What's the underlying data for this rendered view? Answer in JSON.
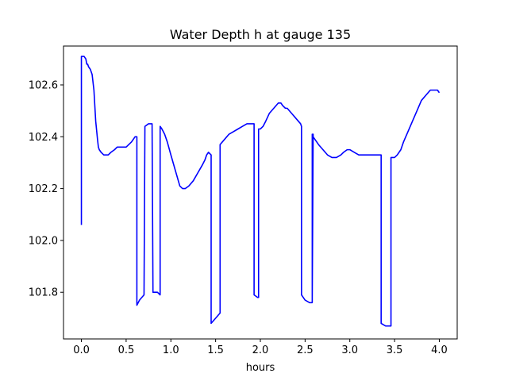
{
  "chart_data": {
    "type": "line",
    "title": "Water Depth h at gauge 135",
    "xlabel": "hours",
    "ylabel": "",
    "xlim": [
      -0.2,
      4.2
    ],
    "ylim": [
      101.62,
      102.75
    ],
    "xticks": [
      0.0,
      0.5,
      1.0,
      1.5,
      2.0,
      2.5,
      3.0,
      3.5,
      4.0
    ],
    "xtick_labels": [
      "0.0",
      "0.5",
      "1.0",
      "1.5",
      "2.0",
      "2.5",
      "3.0",
      "3.5",
      "4.0"
    ],
    "yticks": [
      101.8,
      102.0,
      102.2,
      102.4,
      102.6
    ],
    "ytick_labels": [
      "101.8",
      "102.0",
      "102.2",
      "102.4",
      "102.6"
    ],
    "grid": false,
    "series": [
      {
        "color": "#0000ff",
        "x": [
          0.0,
          0.0,
          0.01,
          0.03,
          0.05,
          0.06,
          0.07,
          0.08,
          0.1,
          0.12,
          0.14,
          0.16,
          0.18,
          0.19,
          0.2,
          0.22,
          0.25,
          0.3,
          0.33,
          0.37,
          0.4,
          0.43,
          0.45,
          0.47,
          0.5,
          0.53,
          0.56,
          0.6,
          0.62,
          0.62,
          0.65,
          0.7,
          0.71,
          0.75,
          0.79,
          0.8,
          0.85,
          0.88,
          0.88,
          0.9,
          0.93,
          0.96,
          1.0,
          1.05,
          1.1,
          1.13,
          1.16,
          1.2,
          1.25,
          1.3,
          1.35,
          1.38,
          1.4,
          1.42,
          1.45,
          1.45,
          1.5,
          1.55,
          1.55,
          1.6,
          1.65,
          1.7,
          1.75,
          1.8,
          1.85,
          1.9,
          1.93,
          1.93,
          1.97,
          1.98,
          1.98,
          2.0,
          2.03,
          2.06,
          2.1,
          2.15,
          2.2,
          2.23,
          2.25,
          2.28,
          2.3,
          2.35,
          2.4,
          2.45,
          2.46,
          2.46,
          2.5,
          2.55,
          2.58,
          2.58,
          2.58,
          2.59,
          2.59,
          2.61,
          2.65,
          2.7,
          2.75,
          2.8,
          2.85,
          2.9,
          2.93,
          2.97,
          3.0,
          3.05,
          3.1,
          3.15,
          3.2,
          3.25,
          3.3,
          3.35,
          3.35,
          3.4,
          3.46,
          3.46,
          3.5,
          3.53,
          3.57,
          3.6,
          3.65,
          3.7,
          3.75,
          3.8,
          3.85,
          3.9,
          3.93,
          3.95,
          3.98,
          4.0
        ],
        "y": [
          102.06,
          102.71,
          102.71,
          102.71,
          102.7,
          102.68,
          102.68,
          102.67,
          102.66,
          102.64,
          102.58,
          102.46,
          102.39,
          102.36,
          102.35,
          102.34,
          102.33,
          102.33,
          102.34,
          102.35,
          102.36,
          102.36,
          102.36,
          102.36,
          102.36,
          102.37,
          102.38,
          102.4,
          102.4,
          101.75,
          101.77,
          101.79,
          102.44,
          102.45,
          102.45,
          101.8,
          101.8,
          101.79,
          102.44,
          102.43,
          102.41,
          102.38,
          102.33,
          102.27,
          102.21,
          102.2,
          102.2,
          102.21,
          102.23,
          102.26,
          102.29,
          102.31,
          102.33,
          102.34,
          102.33,
          101.68,
          101.7,
          101.72,
          102.37,
          102.39,
          102.41,
          102.42,
          102.43,
          102.44,
          102.45,
          102.45,
          102.45,
          101.79,
          101.78,
          101.78,
          102.43,
          102.43,
          102.44,
          102.46,
          102.49,
          102.51,
          102.53,
          102.53,
          102.52,
          102.51,
          102.51,
          102.49,
          102.47,
          102.45,
          102.44,
          101.79,
          101.77,
          101.76,
          101.76,
          102.41,
          101.78,
          102.41,
          102.4,
          102.39,
          102.37,
          102.35,
          102.33,
          102.32,
          102.32,
          102.33,
          102.34,
          102.35,
          102.35,
          102.34,
          102.33,
          102.33,
          102.33,
          102.33,
          102.33,
          102.33,
          101.68,
          101.67,
          101.67,
          102.32,
          102.32,
          102.33,
          102.35,
          102.38,
          102.42,
          102.46,
          102.5,
          102.54,
          102.56,
          102.58,
          102.58,
          102.58,
          102.58,
          102.57
        ]
      }
    ]
  }
}
